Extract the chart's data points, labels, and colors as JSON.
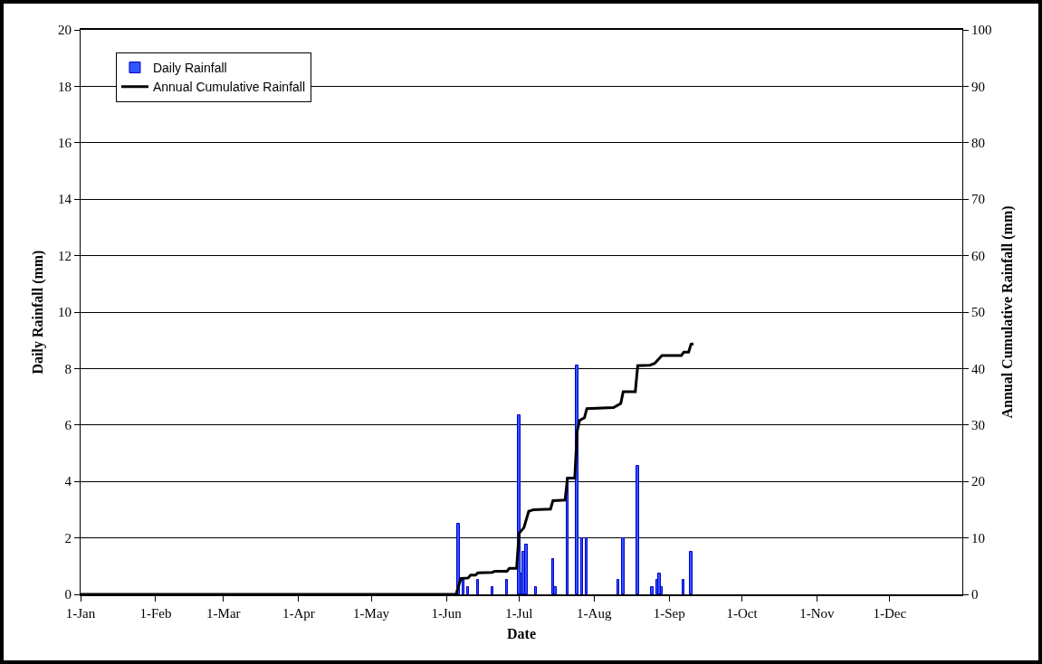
{
  "chart_data": {
    "type": "bar",
    "xlabel": "Date",
    "ylabel": "Daily Rainfall (mm)",
    "y2label": "Annual Cumulative Rainfall (mm)",
    "xlim": [
      "--01-01",
      "--12-31"
    ],
    "xticks": [
      {
        "value": "--01-01",
        "label": "1-Jan"
      },
      {
        "value": "--02-01",
        "label": "1-Feb"
      },
      {
        "value": "--03-01",
        "label": "1-Mar"
      },
      {
        "value": "--04-01",
        "label": "1-Apr"
      },
      {
        "value": "--05-01",
        "label": "1-May"
      },
      {
        "value": "--06-01",
        "label": "1-Jun"
      },
      {
        "value": "--07-01",
        "label": "1-Jul"
      },
      {
        "value": "--08-01",
        "label": "1-Aug"
      },
      {
        "value": "--09-01",
        "label": "1-Sep"
      },
      {
        "value": "--10-01",
        "label": "1-Oct"
      },
      {
        "value": "--11-01",
        "label": "1-Nov"
      },
      {
        "value": "--12-01",
        "label": "1-Dec"
      }
    ],
    "ylim": [
      0,
      20
    ],
    "yticks": [
      0,
      2,
      4,
      6,
      8,
      10,
      12,
      14,
      16,
      18,
      20
    ],
    "y2lim": [
      0,
      100
    ],
    "y2ticks": [
      0,
      10,
      20,
      30,
      40,
      50,
      60,
      70,
      80,
      90,
      100
    ],
    "grid": "y",
    "legend": "top left",
    "series": [
      {
        "name": "Daily Rainfall",
        "color": "#3355ff",
        "x": [
          "--06-06",
          "--06-08",
          "--06-10",
          "--06-14",
          "--06-20",
          "--06-26",
          "--07-01",
          "--07-02",
          "--07-03",
          "--07-04",
          "--07-08",
          "--07-15",
          "--07-16",
          "--07-21",
          "--07-25",
          "--07-27",
          "--07-29",
          "--08-11",
          "--08-13",
          "--08-19",
          "--08-25",
          "--08-27",
          "--08-28",
          "--08-29",
          "--09-07",
          "--09-10"
        ],
        "values": [
          2.5,
          0.5,
          0.25,
          0.5,
          0.25,
          0.5,
          6.35,
          0.75,
          1.5,
          1.75,
          0.25,
          1.25,
          0.25,
          4.1,
          8.1,
          2.0,
          2.0,
          0.5,
          2.0,
          4.55,
          0.25,
          0.5,
          0.75,
          0.25,
          0.5,
          1.5
        ]
      },
      {
        "name": "Annual Cumulative Rainfall",
        "type": "line",
        "axis": "y2",
        "color": "#000000",
        "line_style": "solid",
        "marker": "none",
        "x": [
          "--01-01",
          "--06-05",
          "--06-07",
          "--06-10",
          "--06-11",
          "--06-13",
          "--06-14",
          "--06-20",
          "--06-21",
          "--06-26",
          "--06-27",
          "--06-30",
          "--07-01",
          "--07-03",
          "--07-05",
          "--07-07",
          "--07-14",
          "--07-15",
          "--07-20",
          "--07-21",
          "--07-24",
          "--07-25",
          "--07-26",
          "--07-28",
          "--07-29",
          "--08-09",
          "--08-12",
          "--08-13",
          "--08-18",
          "--08-19",
          "--08-24",
          "--08-26",
          "--08-29",
          "--09-06",
          "--09-07",
          "--09-09",
          "--09-10",
          "--09-11"
        ],
        "values": [
          0,
          0,
          2.8,
          2.9,
          3.4,
          3.4,
          3.8,
          3.9,
          4.1,
          4.1,
          4.6,
          4.6,
          10.8,
          11.8,
          14.7,
          15.0,
          15.1,
          16.6,
          16.7,
          20.6,
          20.6,
          28.9,
          30.8,
          31.3,
          32.9,
          33.1,
          33.8,
          35.9,
          35.9,
          40.5,
          40.6,
          40.9,
          42.3,
          42.3,
          42.9,
          42.9,
          44.3,
          44.4
        ]
      }
    ]
  }
}
